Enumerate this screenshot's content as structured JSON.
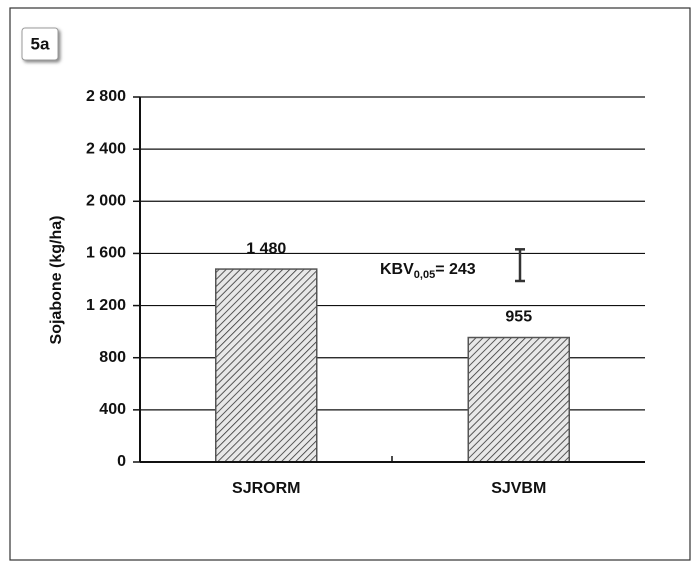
{
  "chart_data": {
    "type": "bar",
    "panel_tag": "5a",
    "y_label": "Sojabone (kg/ha)",
    "categories": [
      "SJRORM",
      "SJVBM"
    ],
    "values": [
      1480,
      955
    ],
    "value_labels": [
      "1 480",
      "955"
    ],
    "color": "#555555",
    "ylim": [
      0,
      2800
    ],
    "yticks": [
      0,
      400,
      800,
      {
        "value": 1200,
        "label": "1 200"
      },
      {
        "value": 1600,
        "label": "1 600"
      },
      {
        "value": 2000,
        "label": "2 000"
      },
      {
        "value": 2400,
        "label": "2 400"
      },
      {
        "value": 2800,
        "label": "2 800"
      }
    ],
    "grid": true,
    "lsd": {
      "name": "KBV",
      "subscript": "0,05",
      "label": "= 243",
      "value": 243
    }
  }
}
